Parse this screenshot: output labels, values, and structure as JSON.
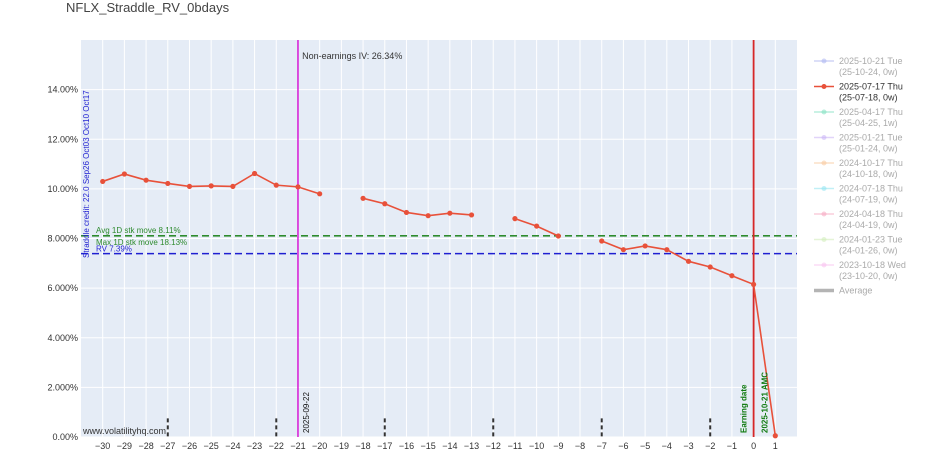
{
  "chart_data": {
    "type": "line",
    "title": "NFLX_Straddle_RV_0bdays",
    "xlim": [
      -31,
      2
    ],
    "ylim": [
      0,
      16
    ],
    "x_ticks": [
      -30,
      -29,
      -28,
      -27,
      -26,
      -25,
      -24,
      -23,
      -22,
      -21,
      -20,
      -19,
      -18,
      -17,
      -16,
      -15,
      -14,
      -13,
      -12,
      -11,
      -10,
      -9,
      -8,
      -7,
      -6,
      -5,
      -4,
      -3,
      -2,
      -1,
      0,
      1
    ],
    "x_tick_labels": [
      "−30",
      "−29",
      "−28",
      "−27",
      "−26",
      "−25",
      "−24",
      "−23",
      "−22",
      "−21",
      "−20",
      "−19",
      "−18",
      "−17",
      "−16",
      "−15",
      "−14",
      "−13",
      "−12",
      "−11",
      "−10",
      "−9",
      "−8",
      "−7",
      "−6",
      "−5",
      "−4",
      "−3",
      "−2",
      "−1",
      "0",
      "1"
    ],
    "y_ticks": [
      0,
      2,
      4,
      6,
      8,
      10,
      12,
      14
    ],
    "y_tick_labels": [
      "0.00%",
      "2.000%",
      "4.000%",
      "6.000%",
      "8.000%",
      "10.00%",
      "12.00%",
      "14.00%"
    ],
    "series": [
      {
        "name": "2025-07-17 Thu (25-07-18, 0w)",
        "color": "#e8513a",
        "segments": [
          [
            [
              -30,
              10.3
            ],
            [
              -29,
              10.6
            ],
            [
              -28,
              10.35
            ],
            [
              -27,
              10.22
            ],
            [
              -26,
              10.1
            ],
            [
              -25,
              10.12
            ],
            [
              -24,
              10.1
            ],
            [
              -23,
              10.62
            ],
            [
              -22,
              10.15
            ],
            [
              -21,
              10.08
            ],
            [
              -20,
              9.8
            ]
          ],
          [
            [
              -18,
              9.62
            ],
            [
              -17,
              9.4
            ],
            [
              -16,
              9.05
            ],
            [
              -15,
              8.92
            ],
            [
              -14,
              9.02
            ],
            [
              -13,
              8.95
            ]
          ],
          [
            [
              -11,
              8.8
            ],
            [
              -10,
              8.5
            ],
            [
              -9,
              8.1
            ]
          ],
          [
            [
              -7,
              7.9
            ],
            [
              -6,
              7.55
            ],
            [
              -5,
              7.7
            ],
            [
              -4,
              7.55
            ],
            [
              -3,
              7.08
            ],
            [
              -2,
              6.85
            ],
            [
              -1,
              6.5
            ],
            [
              0,
              6.15
            ],
            [
              1,
              0.05
            ]
          ]
        ]
      }
    ],
    "reference_lines": {
      "avg_stk_move": {
        "value": 8.11,
        "label": "Avg 1D stk move 8.11%",
        "color": "#2e8b2e"
      },
      "max_stk_move": {
        "label": "Max 1D stk move 18.13%",
        "color": "#2e8b2e"
      },
      "rv": {
        "value": 7.39,
        "label": "RV 7.39%",
        "color": "#1f1fd1"
      }
    },
    "vertical_lines": [
      {
        "x": -21,
        "label": "2025-09-22",
        "color": "#d61ad6"
      },
      {
        "x": 0,
        "label": "Earning date",
        "color": "#d62728"
      },
      {
        "x": 0.5,
        "label": "2025-10-21 AMC",
        "color": "#1a7a1a"
      }
    ],
    "expiry_marks": [
      -27,
      -22,
      -17,
      -12,
      -7,
      -2
    ],
    "top_annotation": "Non-earnings IV: 26.34%",
    "left_annotation": "Straddle credit: 22.0 Sep26 Oct03 Oct10 Oct17",
    "watermark": "www.volatilityhq.com",
    "legend": {
      "placement": "right",
      "items": [
        {
          "line1": "2025-10-21 Tue",
          "line2": "(25-10-24, 0w)",
          "color": "#aab2f0",
          "active": false,
          "style": "line"
        },
        {
          "line1": "2025-07-17 Thu",
          "line2": "(25-07-18, 0w)",
          "color": "#e8513a",
          "active": true,
          "style": "line"
        },
        {
          "line1": "2025-04-17 Thu",
          "line2": "(25-04-25, 1w)",
          "color": "#7fe0c0",
          "active": false,
          "style": "line"
        },
        {
          "line1": "2025-01-21 Tue",
          "line2": "(25-01-24, 0w)",
          "color": "#c9b2f5",
          "active": false,
          "style": "line"
        },
        {
          "line1": "2024-10-17 Thu",
          "line2": "(24-10-18, 0w)",
          "color": "#f7c79a",
          "active": false,
          "style": "line"
        },
        {
          "line1": "2024-07-18 Thu",
          "line2": "(24-07-19, 0w)",
          "color": "#8fe3f0",
          "active": false,
          "style": "line"
        },
        {
          "line1": "2024-04-18 Thu",
          "line2": "(24-04-19, 0w)",
          "color": "#f5a5bf",
          "active": false,
          "style": "line"
        },
        {
          "line1": "2024-01-23 Tue",
          "line2": "(24-01-26, 0w)",
          "color": "#d0ecb8",
          "active": false,
          "style": "line"
        },
        {
          "line1": "2023-10-18 Wed",
          "line2": "(23-10-20, 0w)",
          "color": "#f7bfee",
          "active": false,
          "style": "line"
        },
        {
          "line1": "Average",
          "line2": "",
          "color": "#777777",
          "active": false,
          "style": "thick"
        }
      ]
    }
  }
}
